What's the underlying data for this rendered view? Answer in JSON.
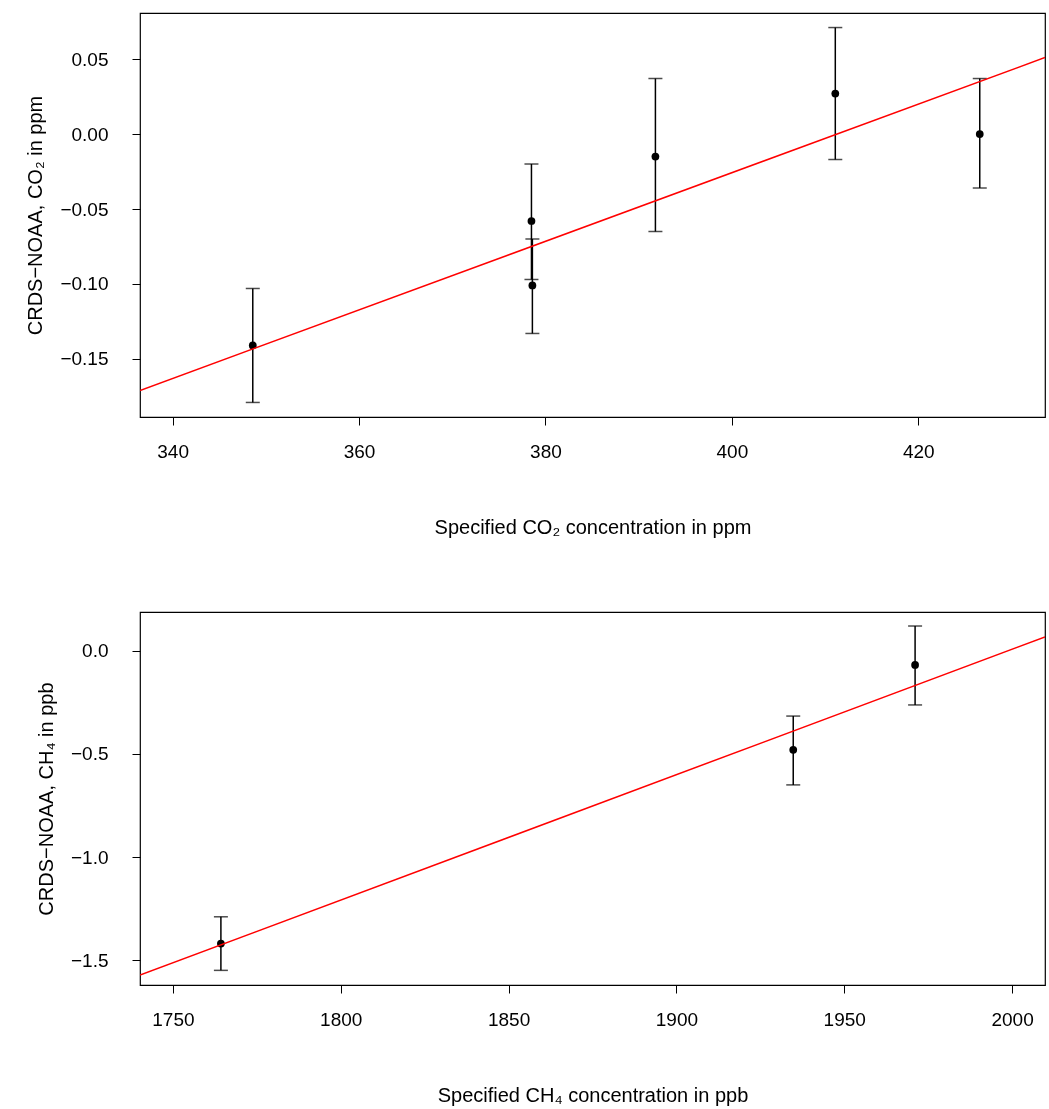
{
  "chart_data": [
    {
      "type": "scatter",
      "xlabel": "Specified CO₂ concentration in ppm",
      "ylabel": "CRDS−NOAA, CO₂ in ppm",
      "xlim": [
        336.5,
        433.6
      ],
      "ylim": [
        -0.1887,
        0.0807
      ],
      "xticks": [
        340,
        360,
        380,
        400,
        420
      ],
      "yticks": [
        {
          "value": -0.15,
          "label": "−0.15"
        },
        {
          "value": -0.1,
          "label": "−0.10"
        },
        {
          "value": -0.05,
          "label": "−0.05"
        },
        {
          "value": 0,
          "label": "0.00"
        },
        {
          "value": 0.05,
          "label": "0.05"
        }
      ],
      "series": [
        {
          "marker": "circle",
          "color": "#000000",
          "x": [
            348.6,
            378.5,
            378.6,
            391.8,
            411.1,
            426.6
          ],
          "values": [
            -0.141,
            -0.058,
            -0.101,
            -0.015,
            0.027,
            0.0
          ],
          "errors": [
            [
              -0.179,
              -0.103
            ],
            [
              -0.097,
              -0.02
            ],
            [
              -0.133,
              -0.07
            ],
            [
              -0.065,
              0.037
            ],
            [
              -0.017,
              0.071
            ],
            [
              -0.036,
              0.037
            ]
          ]
        },
        {
          "type": "line",
          "color": "#ff0000",
          "x": [
            336.5,
            433.6
          ],
          "values": [
            -0.171,
            0.051
          ]
        }
      ]
    },
    {
      "type": "scatter",
      "xlabel": "Specified CH₄ concentration in ppb",
      "ylabel": "CRDS−NOAA, CH₄ in ppb",
      "xlim": [
        1740.2,
        2009.8
      ],
      "ylim": [
        -1.621,
        0.189
      ],
      "xticks": [
        1750,
        1800,
        1850,
        1900,
        1950,
        2000
      ],
      "yticks": [
        {
          "value": -1.5,
          "label": "−1.5"
        },
        {
          "value": -1,
          "label": "−1.0"
        },
        {
          "value": -0.5,
          "label": "−0.5"
        },
        {
          "value": 0,
          "label": "0.0"
        }
      ],
      "series": [
        {
          "marker": "circle",
          "color": "#000000",
          "x": [
            1764.3,
            1934.8,
            1971.1
          ],
          "values": [
            -1.42,
            -0.48,
            -0.068
          ],
          "errors": [
            [
              -1.55,
              -1.29
            ],
            [
              -0.65,
              -0.316
            ],
            [
              -0.262,
              0.121
            ]
          ]
        },
        {
          "type": "line",
          "color": "#ff0000",
          "x": [
            1740.2,
            2009.8
          ],
          "values": [
            -1.573,
            0.068
          ]
        }
      ]
    }
  ]
}
